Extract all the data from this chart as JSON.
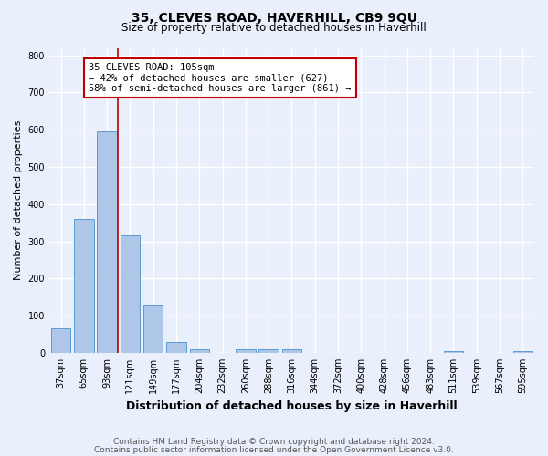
{
  "title": "35, CLEVES ROAD, HAVERHILL, CB9 9QU",
  "subtitle": "Size of property relative to detached houses in Haverhill",
  "xlabel": "Distribution of detached houses by size in Haverhill",
  "ylabel": "Number of detached properties",
  "bar_labels": [
    "37sqm",
    "65sqm",
    "93sqm",
    "121sqm",
    "149sqm",
    "177sqm",
    "204sqm",
    "232sqm",
    "260sqm",
    "288sqm",
    "316sqm",
    "344sqm",
    "372sqm",
    "400sqm",
    "428sqm",
    "456sqm",
    "483sqm",
    "511sqm",
    "539sqm",
    "567sqm",
    "595sqm"
  ],
  "bar_values": [
    65,
    360,
    595,
    315,
    130,
    30,
    10,
    0,
    10,
    10,
    10,
    0,
    0,
    0,
    0,
    0,
    0,
    5,
    0,
    0,
    5
  ],
  "bar_color": "#aec6e8",
  "bar_edge_color": "#5b9bd5",
  "vline_color": "#c00000",
  "ylim": [
    0,
    820
  ],
  "yticks": [
    0,
    100,
    200,
    300,
    400,
    500,
    600,
    700,
    800
  ],
  "annotation_title": "35 CLEVES ROAD: 105sqm",
  "annotation_line1": "← 42% of detached houses are smaller (627)",
  "annotation_line2": "58% of semi-detached houses are larger (861) →",
  "annotation_box_color": "#ffffff",
  "annotation_box_edge": "#c00000",
  "footer1": "Contains HM Land Registry data © Crown copyright and database right 2024.",
  "footer2": "Contains public sector information licensed under the Open Government Licence v3.0.",
  "bg_color": "#eaf0fb",
  "plot_bg_color": "#eaf0fb",
  "grid_color": "#ffffff",
  "title_fontsize": 10,
  "subtitle_fontsize": 8.5,
  "xlabel_fontsize": 9,
  "ylabel_fontsize": 8,
  "tick_fontsize": 7,
  "footer_fontsize": 6.5,
  "annotation_fontsize": 7.5
}
